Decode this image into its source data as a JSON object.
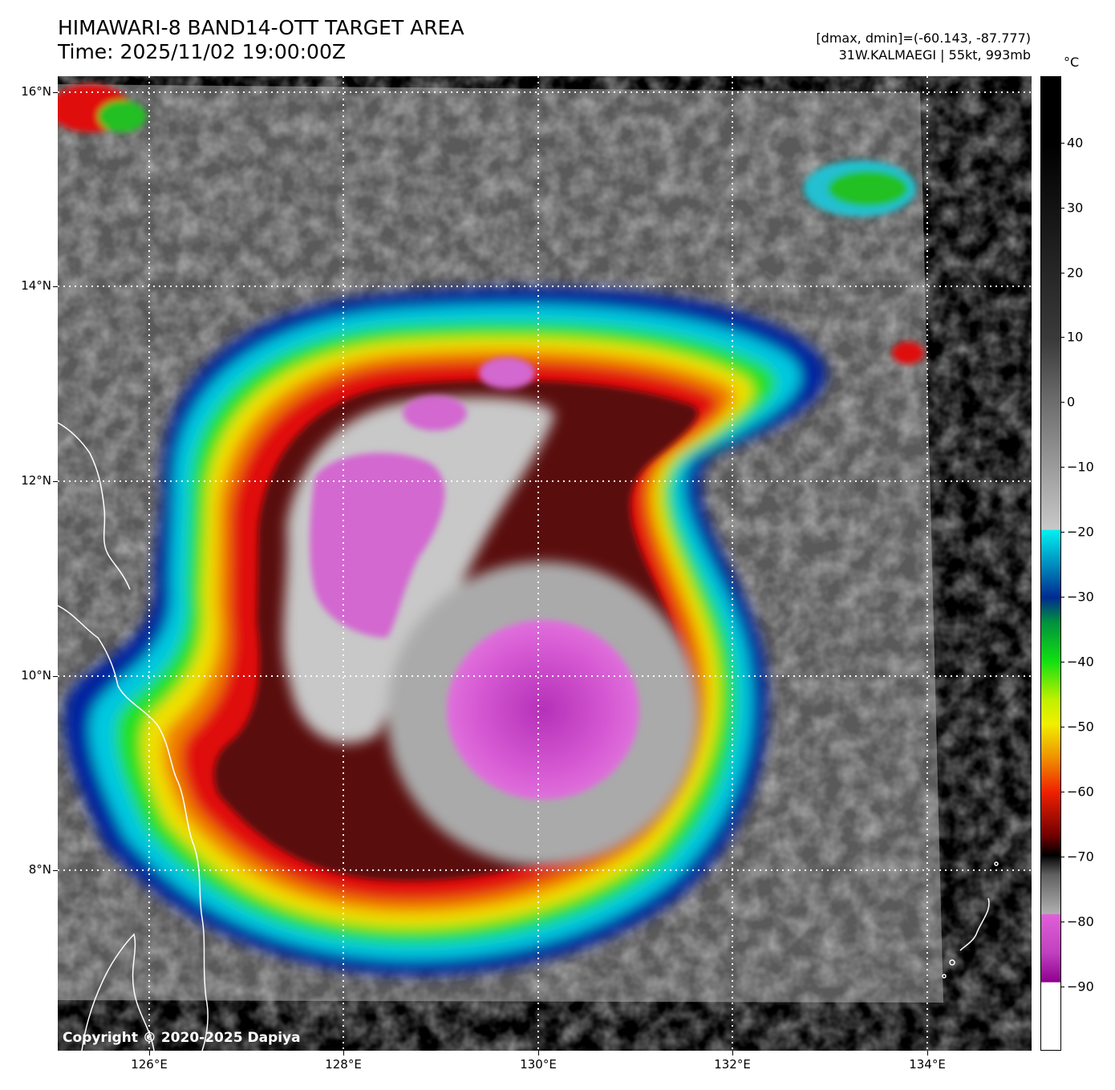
{
  "header": {
    "title": "HIMAWARI-8 BAND14-OTT TARGET AREA",
    "time": "Time: 2025/11/02 19:00:00Z",
    "dmax_dmin": "[dmax, dmin]=(-60.143, -87.777)",
    "storm": "31W.KALMAEGI | 55kt, 993mb"
  },
  "map": {
    "lat_labels": [
      "16°N",
      "14°N",
      "12°N",
      "10°N",
      "8°N"
    ],
    "lon_labels": [
      "126°E",
      "128°E",
      "130°E",
      "132°E",
      "134°E"
    ],
    "copyright": "Copyright © 2020-2025 Dapiya"
  },
  "colorbar": {
    "unit": "°C",
    "labels": [
      "40",
      "30",
      "20",
      "10",
      "0",
      "−10",
      "−20",
      "−30",
      "−40",
      "−50",
      "−60",
      "−70",
      "−80",
      "−90"
    ]
  }
}
